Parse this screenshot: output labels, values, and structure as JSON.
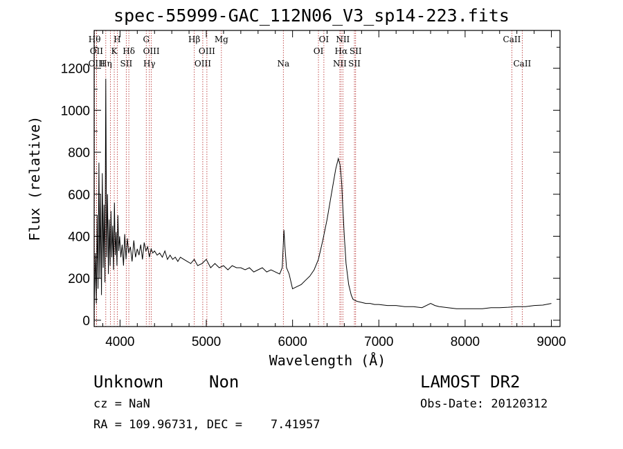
{
  "title": "spec-55999-GAC_112N06_V3_sp14-223.fits",
  "info": {
    "class": "Unknown",
    "subclass": "Non",
    "cz": "cz = NaN",
    "radec": "RA = 109.96731, DEC =    7.41957",
    "survey": "LAMOST DR2",
    "obsdate": "Obs-Date: 20120312"
  },
  "chart_data": {
    "type": "line",
    "title": "spec-55999-GAC_112N06_V3_sp14-223.fits",
    "xlabel": "Wavelength (Å)",
    "ylabel": "Flux (relative)",
    "xlim": [
      3700,
      9100
    ],
    "ylim": [
      -30,
      1380
    ],
    "xticks": [
      4000,
      5000,
      6000,
      7000,
      8000,
      9000
    ],
    "yticks": [
      0,
      200,
      400,
      600,
      800,
      1000,
      1200
    ],
    "grid": false,
    "series": [
      {
        "color": "#000000",
        "x": [
          3700,
          3715,
          3725,
          3735,
          3745,
          3755,
          3765,
          3775,
          3785,
          3795,
          3805,
          3815,
          3825,
          3835,
          3845,
          3855,
          3865,
          3875,
          3885,
          3895,
          3905,
          3915,
          3925,
          3935,
          3945,
          3955,
          3965,
          3975,
          3985,
          3995,
          4010,
          4025,
          4040,
          4055,
          4070,
          4085,
          4100,
          4120,
          4140,
          4160,
          4180,
          4200,
          4220,
          4240,
          4260,
          4280,
          4300,
          4320,
          4340,
          4360,
          4380,
          4400,
          4430,
          4460,
          4490,
          4520,
          4550,
          4580,
          4610,
          4640,
          4670,
          4700,
          4740,
          4780,
          4820,
          4860,
          4900,
          4950,
          5000,
          5050,
          5100,
          5150,
          5200,
          5250,
          5300,
          5350,
          5400,
          5450,
          5500,
          5550,
          5600,
          5650,
          5700,
          5750,
          5800,
          5850,
          5880,
          5900,
          5910,
          5930,
          5960,
          6000,
          6050,
          6100,
          6150,
          6200,
          6250,
          6300,
          6350,
          6400,
          6450,
          6500,
          6530,
          6550,
          6560,
          6570,
          6580,
          6600,
          6620,
          6650,
          6680,
          6700,
          6720,
          6750,
          6800,
          6850,
          6900,
          6950,
          7000,
          7100,
          7200,
          7300,
          7400,
          7500,
          7600,
          7650,
          7700,
          7800,
          7900,
          8000,
          8100,
          8200,
          8300,
          8400,
          8500,
          8600,
          8700,
          8800,
          8900,
          9000
        ],
        "y": [
          50,
          320,
          80,
          500,
          150,
          750,
          200,
          600,
          120,
          700,
          250,
          550,
          180,
          1150,
          300,
          600,
          220,
          480,
          260,
          520,
          300,
          450,
          240,
          560,
          310,
          420,
          260,
          500,
          330,
          400,
          300,
          360,
          260,
          410,
          290,
          390,
          320,
          350,
          280,
          380,
          300,
          340,
          310,
          360,
          290,
          370,
          330,
          350,
          300,
          340,
          320,
          330,
          310,
          320,
          300,
          330,
          290,
          310,
          290,
          300,
          280,
          300,
          290,
          280,
          270,
          290,
          260,
          270,
          290,
          250,
          270,
          250,
          260,
          240,
          260,
          250,
          250,
          240,
          250,
          230,
          240,
          250,
          230,
          240,
          230,
          220,
          250,
          430,
          360,
          250,
          220,
          150,
          160,
          170,
          190,
          210,
          240,
          290,
          380,
          480,
          600,
          720,
          770,
          740,
          700,
          650,
          560,
          400,
          270,
          170,
          120,
          100,
          95,
          90,
          85,
          80,
          80,
          75,
          75,
          70,
          70,
          65,
          65,
          60,
          80,
          70,
          65,
          60,
          55,
          55,
          55,
          55,
          60,
          60,
          62,
          65,
          65,
          70,
          72,
          80
        ]
      }
    ],
    "annotations": [
      {
        "x": 3705,
        "row": 0,
        "text": "Hθ"
      },
      {
        "x": 3727,
        "row": 1,
        "text": "OII"
      },
      {
        "x": 3729,
        "row": 2,
        "text": "OIII"
      },
      {
        "x": 3835,
        "row": 2,
        "text": "Hη"
      },
      {
        "x": 3889,
        "row": 2,
        "text": ""
      },
      {
        "x": 3933,
        "row": 1,
        "text": "K"
      },
      {
        "x": 3968,
        "row": 0,
        "text": "H"
      },
      {
        "x": 4102,
        "row": 1,
        "text": "Hδ"
      },
      {
        "x": 4072,
        "row": 2,
        "text": "SII"
      },
      {
        "x": 4304,
        "row": 0,
        "text": "G"
      },
      {
        "x": 4340,
        "row": 2,
        "text": "Hγ"
      },
      {
        "x": 4363,
        "row": 1,
        "text": "OIII"
      },
      {
        "x": 4861,
        "row": 0,
        "text": "Hβ"
      },
      {
        "x": 4959,
        "row": 2,
        "text": "OIII"
      },
      {
        "x": 5007,
        "row": 1,
        "text": "OIII"
      },
      {
        "x": 5175,
        "row": 0,
        "text": "Mg"
      },
      {
        "x": 5893,
        "row": 2,
        "text": "Na"
      },
      {
        "x": 6300,
        "row": 1,
        "text": "OI"
      },
      {
        "x": 6363,
        "row": 0,
        "text": "OI"
      },
      {
        "x": 6548,
        "row": 2,
        "text": "NII"
      },
      {
        "x": 6563,
        "row": 1,
        "text": "Hα"
      },
      {
        "x": 6583,
        "row": 0,
        "text": "NII"
      },
      {
        "x": 6717,
        "row": 2,
        "text": "SII"
      },
      {
        "x": 6731,
        "row": 1,
        "text": "SII"
      },
      {
        "x": 8542,
        "row": 0,
        "text": "CaII"
      },
      {
        "x": 8662,
        "row": 2,
        "text": "CaII"
      }
    ]
  }
}
